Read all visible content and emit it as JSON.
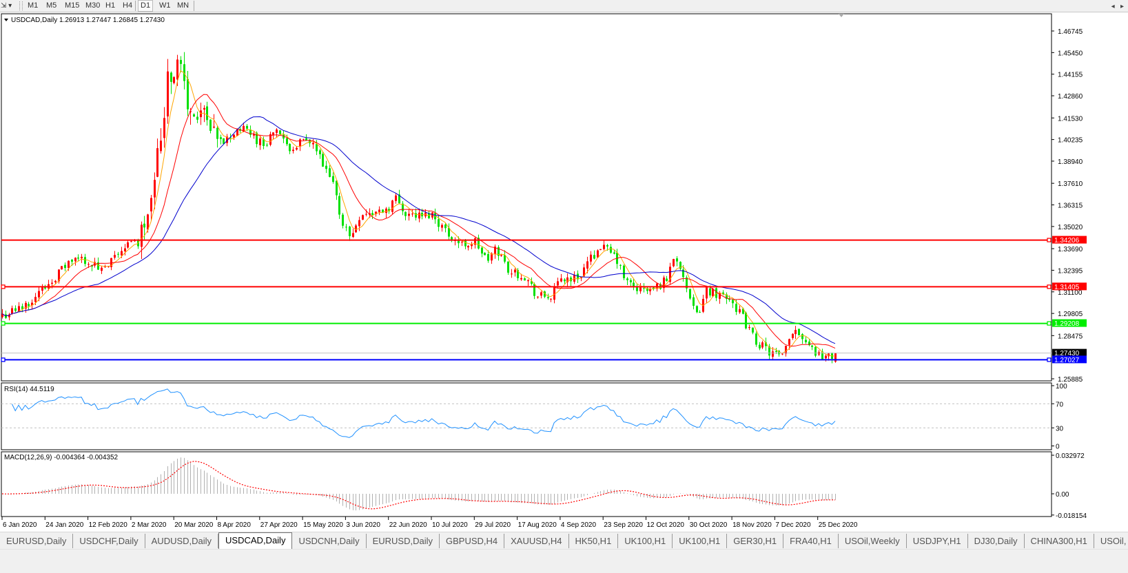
{
  "toolbar": {
    "timeframes": [
      "M1",
      "M5",
      "M15",
      "M30",
      "H1",
      "H4",
      "D1",
      "W1",
      "MN"
    ],
    "active_timeframe": "D1",
    "tool_icon": "cursor-arrow-icon"
  },
  "chart": {
    "symbol_label": "USDCAD,Daily",
    "ohlc_label": "1.26913 1.27447 1.26845 1.27430"
  },
  "chart_data": {
    "type": "candlestick",
    "symbol": "USDCAD",
    "timeframe": "Daily",
    "title": "USDCAD,Daily 1.26913 1.27447 1.26845 1.27430",
    "last_bar": {
      "open": 1.26913,
      "high": 1.27447,
      "low": 1.26845,
      "close": 1.2743
    },
    "up_color": "#ff0000",
    "down_color": "#00e000",
    "price_ticks": [
      "1.46745",
      "1.45450",
      "1.44155",
      "1.42860",
      "1.41530",
      "1.40235",
      "1.38940",
      "1.37610",
      "1.36315",
      "1.35020",
      "1.33690",
      "1.32395",
      "1.31100",
      "1.29805",
      "1.28475",
      "1.25885"
    ],
    "ylim": [
      1.25885,
      1.46745
    ],
    "date_ticks": [
      "6 Jan 2020",
      "24 Jan 2020",
      "12 Feb 2020",
      "2 Mar 2020",
      "20 Mar 2020",
      "8 Apr 2020",
      "27 Apr 2020",
      "15 May 2020",
      "3 Jun 2020",
      "22 Jun 2020",
      "10 Jul 2020",
      "29 Jul 2020",
      "17 Aug 2020",
      "4 Sep 2020",
      "23 Sep 2020",
      "12 Oct 2020",
      "30 Oct 2020",
      "18 Nov 2020",
      "7 Dec 2020",
      "25 Dec 2020"
    ],
    "levels": [
      {
        "price": "1.34206",
        "color": "#ff0000"
      },
      {
        "price": "1.31405",
        "color": "#ff0000"
      },
      {
        "price": "1.29208",
        "color": "#00ee00"
      },
      {
        "price": "1.27027",
        "color": "#0000ff"
      }
    ],
    "current_price": {
      "price": "1.27430",
      "color": "#c0c0c0"
    },
    "moving_average_colors": [
      "#ffa500",
      "#ff0000",
      "#0000cd"
    ],
    "close_path": [
      [
        "2020-01-06",
        1.297
      ],
      [
        "2020-01-14",
        1.301
      ],
      [
        "2020-01-23",
        1.312
      ],
      [
        "2020-02-04",
        1.329
      ],
      [
        "2020-02-10",
        1.331
      ],
      [
        "2020-02-19",
        1.323
      ],
      [
        "2020-02-28",
        1.339
      ],
      [
        "2020-03-05",
        1.341
      ],
      [
        "2020-03-09",
        1.362
      ],
      [
        "2020-03-11",
        1.378
      ],
      [
        "2020-03-16",
        1.412
      ],
      [
        "2020-03-17",
        1.449
      ],
      [
        "2020-03-19",
        1.44
      ],
      [
        "2020-03-23",
        1.451
      ],
      [
        "2020-03-25",
        1.432
      ],
      [
        "2020-03-27",
        1.416
      ],
      [
        "2020-04-01",
        1.42
      ],
      [
        "2020-04-03",
        1.412
      ],
      [
        "2020-04-08",
        1.399
      ],
      [
        "2020-04-13",
        1.403
      ],
      [
        "2020-04-17",
        1.409
      ],
      [
        "2020-04-22",
        1.407
      ],
      [
        "2020-04-28",
        1.399
      ],
      [
        "2020-05-04",
        1.409
      ],
      [
        "2020-05-08",
        1.397
      ],
      [
        "2020-05-15",
        1.401
      ],
      [
        "2020-05-20",
        1.399
      ],
      [
        "2020-05-25",
        1.383
      ],
      [
        "2020-05-28",
        1.377
      ],
      [
        "2020-06-01",
        1.354
      ],
      [
        "2020-06-05",
        1.343
      ],
      [
        "2020-06-09",
        1.358
      ],
      [
        "2020-06-15",
        1.358
      ],
      [
        "2020-06-22",
        1.362
      ],
      [
        "2020-06-24",
        1.368
      ],
      [
        "2020-06-29",
        1.358
      ],
      [
        "2020-07-06",
        1.356
      ],
      [
        "2020-07-10",
        1.358
      ],
      [
        "2020-07-17",
        1.346
      ],
      [
        "2020-07-23",
        1.339
      ],
      [
        "2020-07-29",
        1.341
      ],
      [
        "2020-08-03",
        1.329
      ],
      [
        "2020-08-07",
        1.337
      ],
      [
        "2020-08-13",
        1.323
      ],
      [
        "2020-08-19",
        1.321
      ],
      [
        "2020-08-25",
        1.308
      ],
      [
        "2020-08-31",
        1.308
      ],
      [
        "2020-09-04",
        1.319
      ],
      [
        "2020-09-11",
        1.319
      ],
      [
        "2020-09-16",
        1.329
      ],
      [
        "2020-09-21",
        1.339
      ],
      [
        "2020-09-28",
        1.331
      ],
      [
        "2020-10-02",
        1.317
      ],
      [
        "2020-10-08",
        1.312
      ],
      [
        "2020-10-14",
        1.312
      ],
      [
        "2020-10-20",
        1.319
      ],
      [
        "2020-10-23",
        1.333
      ],
      [
        "2020-10-26",
        1.327
      ],
      [
        "2020-10-30",
        1.304
      ],
      [
        "2020-11-02",
        1.296
      ],
      [
        "2020-11-06",
        1.312
      ],
      [
        "2020-11-16",
        1.308
      ],
      [
        "2020-11-20",
        1.3
      ],
      [
        "2020-11-27",
        1.282
      ],
      [
        "2020-12-03",
        1.275
      ],
      [
        "2020-12-09",
        1.271
      ],
      [
        "2020-12-14",
        1.29
      ],
      [
        "2020-12-18",
        1.284
      ],
      [
        "2020-12-24",
        1.274
      ],
      [
        "2020-12-30",
        1.271
      ],
      [
        "2021-01-01",
        1.2743
      ]
    ],
    "rsi": {
      "label": "RSI(14) 44.5119",
      "ticks": [
        "100",
        "70",
        "30",
        "0"
      ],
      "levels": [
        70,
        30
      ],
      "color": "#1e90ff"
    },
    "macd": {
      "label": "MACD(12,26,9) -0.004364 -0.004352",
      "ticks": [
        "0.032972",
        "0.00",
        "-0.018154"
      ],
      "histogram_color": "#b0b0b0",
      "signal_color": "#ff0000"
    }
  },
  "tabs": [
    "EURUSD,Daily",
    "USDCHF,Daily",
    "AUDUSD,Daily",
    "USDCAD,Daily",
    "USDCNH,Daily",
    "EURUSD,Daily",
    "GBPUSD,H4",
    "XAUUSD,H4",
    "HK50,H1",
    "UK100,H1",
    "UK100,H1",
    "GER30,H1",
    "FRA40,H1",
    "USOil,Weekly",
    "USDJPY,H1",
    "DJ30,Daily",
    "CHINA300,H1",
    "USOil,"
  ],
  "active_tab": "USDCAD,Daily"
}
